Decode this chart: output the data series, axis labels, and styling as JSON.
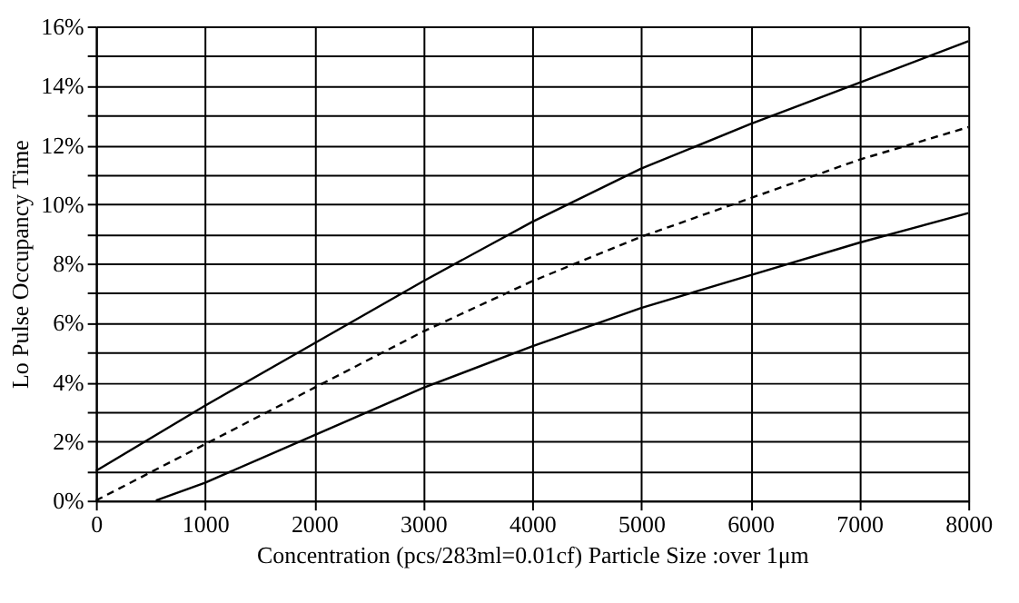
{
  "chart_data": {
    "type": "line",
    "xlabel": "Concentration (pcs/283ml=0.01cf)  Particle Size :over 1μm",
    "ylabel": "Lo Pulse Occupancy Time",
    "xlim": [
      0,
      8000
    ],
    "xticks": [
      0,
      1000,
      2000,
      3000,
      4000,
      5000,
      6000,
      7000,
      8000
    ],
    "ylim": [
      0,
      16
    ],
    "yticks": [
      {
        "value": 0,
        "label": "0%"
      },
      {
        "value": 1,
        "label": null
      },
      {
        "value": 2,
        "label": "2%"
      },
      {
        "value": 3,
        "label": null
      },
      {
        "value": 4,
        "label": "4%"
      },
      {
        "value": 5,
        "label": null
      },
      {
        "value": 6,
        "label": "6%"
      },
      {
        "value": 7,
        "label": null
      },
      {
        "value": 8,
        "label": "8%"
      },
      {
        "value": 9,
        "label": null
      },
      {
        "value": 10,
        "label": "10%"
      },
      {
        "value": 11,
        "label": null
      },
      {
        "value": 12,
        "label": "12%"
      },
      {
        "value": 13,
        "label": null
      },
      {
        "value": 14,
        "label": "14%"
      },
      {
        "value": 15,
        "label": null
      },
      {
        "value": 16,
        "label": "16%"
      }
    ],
    "grid": true,
    "marker": "none",
    "series": [
      {
        "color": "#000000",
        "line_style": "solid",
        "x": [
          0,
          1000,
          2000,
          3000,
          4000,
          5000,
          6000,
          7000,
          8000
        ],
        "values": [
          1.0,
          3.2,
          5.3,
          7.4,
          9.4,
          11.2,
          12.7,
          14.1,
          15.5
        ]
      },
      {
        "color": "#000000",
        "line_style": "dashed",
        "x": [
          0,
          1000,
          2000,
          3000,
          4000,
          5000,
          6000,
          7000,
          8000
        ],
        "values": [
          0,
          1.9,
          3.8,
          5.7,
          7.4,
          8.9,
          10.2,
          11.5,
          12.6
        ]
      },
      {
        "color": "#000000",
        "line_style": "solid",
        "x": [
          550,
          1000,
          2000,
          3000,
          4000,
          5000,
          6000,
          7000,
          8000
        ],
        "values": [
          0,
          0.6,
          2.2,
          3.8,
          5.2,
          6.5,
          7.6,
          8.7,
          9.7
        ]
      }
    ]
  }
}
